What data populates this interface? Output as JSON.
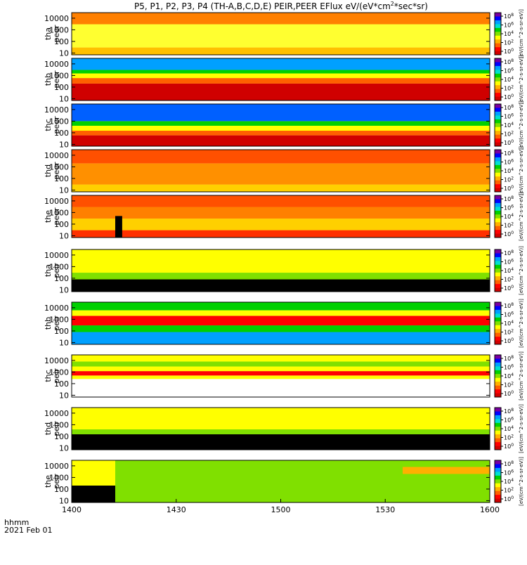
{
  "title": {
    "text": "P5, P1, P2, P3, P4 (TH-A,B,C,D,E) PEIR,PEER EFlux eV/(eV*cm",
    "sup": "2",
    "text_end": "*sec*sr)"
  },
  "time_axis": {
    "label_line1": "hhmm",
    "label_line2": "2021 Feb 01",
    "ticks": [
      {
        "t": 0,
        "label": "1400"
      },
      {
        "t": 30,
        "label": "1430"
      },
      {
        "t": 60,
        "label": "1500"
      },
      {
        "t": 90,
        "label": "1530"
      },
      {
        "t": 120,
        "label": "1600"
      }
    ],
    "range_minutes": [
      0,
      120
    ]
  },
  "colorbar": {
    "ticks": [
      {
        "base": "10",
        "exp": "8"
      },
      {
        "base": "10",
        "exp": "6"
      },
      {
        "base": "10",
        "exp": "4"
      },
      {
        "base": "10",
        "exp": "2"
      },
      {
        "base": "10",
        "exp": "0"
      }
    ],
    "label": "[eV/(cm^2-s-sr-eV)]"
  },
  "colors": {
    "scale": [
      "#7800a0",
      "#0000ff",
      "#00a0ff",
      "#00e0d0",
      "#00d000",
      "#80e000",
      "#ffff00",
      "#ffb000",
      "#ff6000",
      "#ff0000",
      "#d00000"
    ],
    "fill_value": "#000000",
    "empty": "#ffffff"
  },
  "chart_data": {
    "type": "heatmap",
    "x_unit": "minutes after 14:00 UT",
    "y_scale": "log",
    "panels": [
      {
        "probe": "tha",
        "species": "peer",
        "ylabel1": "tha",
        "ylabel2": "peer",
        "yrange": [
          7,
          30000
        ],
        "yticks": [
          "10000",
          "1000",
          "100",
          "10"
        ],
        "bands": [
          {
            "elo": 7,
            "ehi": 30,
            "color": "#ffc000"
          },
          {
            "elo": 30,
            "ehi": 3000,
            "color": "#ffff30"
          },
          {
            "elo": 3000,
            "ehi": 30000,
            "color": "#ff8000"
          }
        ]
      },
      {
        "probe": "thb",
        "species": "peer",
        "ylabel1": "thb",
        "ylabel2": "peer",
        "yrange": [
          7,
          30000
        ],
        "yticks": [
          "10000",
          "1000",
          "100",
          "10"
        ],
        "bands": [
          {
            "elo": 7,
            "ehi": 200,
            "color": "#d00000"
          },
          {
            "elo": 200,
            "ehi": 600,
            "color": "#ff6000"
          },
          {
            "elo": 600,
            "ehi": 1500,
            "color": "#ffff00"
          },
          {
            "elo": 1500,
            "ehi": 3000,
            "color": "#00d000"
          },
          {
            "elo": 3000,
            "ehi": 30000,
            "color": "#00a0ff"
          }
        ]
      },
      {
        "probe": "thc",
        "species": "peer",
        "ylabel1": "thc",
        "ylabel2": "peer",
        "yrange": [
          7,
          30000
        ],
        "yticks": [
          "10000",
          "1000",
          "100",
          "10"
        ],
        "bands": [
          {
            "elo": 7,
            "ehi": 60,
            "color": "#d00000"
          },
          {
            "elo": 60,
            "ehi": 150,
            "color": "#ff6000"
          },
          {
            "elo": 150,
            "ehi": 400,
            "color": "#ffff00"
          },
          {
            "elo": 400,
            "ehi": 1000,
            "color": "#00d000"
          },
          {
            "elo": 1000,
            "ehi": 30000,
            "color": "#0060ff"
          }
        ]
      },
      {
        "probe": "thd",
        "species": "peer",
        "ylabel1": "thd",
        "ylabel2": "peer",
        "yrange": [
          7,
          30000
        ],
        "yticks": [
          "10000",
          "1000",
          "100",
          "10"
        ],
        "bands": [
          {
            "elo": 7,
            "ehi": 30,
            "color": "#ffd000"
          },
          {
            "elo": 30,
            "ehi": 2000,
            "color": "#ff9000"
          },
          {
            "elo": 2000,
            "ehi": 30000,
            "color": "#ff5000"
          }
        ]
      },
      {
        "probe": "the",
        "species": "peer",
        "ylabel1": "the",
        "ylabel2": "peer",
        "yrange": [
          7,
          30000
        ],
        "yticks": [
          "10000",
          "1000",
          "100",
          "10"
        ],
        "bands": [
          {
            "elo": 7,
            "ehi": 30,
            "color": "#ff3000"
          },
          {
            "elo": 30,
            "ehi": 300,
            "color": "#ffd000"
          },
          {
            "elo": 300,
            "ehi": 3000,
            "color": "#ff8000"
          },
          {
            "elo": 3000,
            "ehi": 30000,
            "color": "#ff5000"
          }
        ],
        "overlays": [
          {
            "t0": 12.5,
            "t1": 14.5,
            "elo": 7,
            "ehi": 500,
            "color": "#000000"
          }
        ]
      },
      {
        "probe": "tha",
        "species": "peir",
        "ylabel1": "tha",
        "ylabel2": "peir",
        "yrange": [
          7,
          30000
        ],
        "yticks": [
          "10000",
          "1000",
          "100",
          "10"
        ],
        "bands": [
          {
            "elo": 7,
            "ehi": 80,
            "color": "#000000"
          },
          {
            "elo": 80,
            "ehi": 300,
            "color": "#80e000"
          },
          {
            "elo": 300,
            "ehi": 30000,
            "color": "#ffff00"
          }
        ]
      },
      {
        "probe": "thb",
        "species": "peir",
        "ylabel1": "thb",
        "ylabel2": "peir",
        "yrange": [
          7,
          30000
        ],
        "yticks": [
          "10000",
          "1000",
          "100",
          "10"
        ],
        "bands": [
          {
            "elo": 7,
            "ehi": 80,
            "color": "#00a0ff"
          },
          {
            "elo": 80,
            "ehi": 300,
            "color": "#00d000"
          },
          {
            "elo": 300,
            "ehi": 2000,
            "color": "#ff0000"
          },
          {
            "elo": 2000,
            "ehi": 6000,
            "color": "#ffff00"
          },
          {
            "elo": 6000,
            "ehi": 30000,
            "color": "#00d000"
          }
        ]
      },
      {
        "probe": "thc",
        "species": "peir",
        "ylabel1": "thc",
        "ylabel2": "peir",
        "yrange": [
          7,
          30000
        ],
        "yticks": [
          "10000",
          "1000",
          "100",
          "10"
        ],
        "bands": [
          {
            "elo": 7,
            "ehi": 250,
            "color": "#ffffff"
          },
          {
            "elo": 250,
            "ehi": 500,
            "color": "#ffff00"
          },
          {
            "elo": 500,
            "ehi": 1200,
            "color": "#ff0000"
          },
          {
            "elo": 1200,
            "ehi": 3000,
            "color": "#ffff00"
          },
          {
            "elo": 3000,
            "ehi": 8000,
            "color": "#80e000"
          },
          {
            "elo": 8000,
            "ehi": 30000,
            "color": "#ffff00"
          }
        ]
      },
      {
        "probe": "thd",
        "species": "peir",
        "ylabel1": "thd",
        "ylabel2": "peir",
        "yrange": [
          7,
          30000
        ],
        "yticks": [
          "10000",
          "1000",
          "100",
          "10"
        ],
        "bands": [
          {
            "elo": 7,
            "ehi": 150,
            "color": "#000000"
          },
          {
            "elo": 150,
            "ehi": 400,
            "color": "#80e000"
          },
          {
            "elo": 400,
            "ehi": 30000,
            "color": "#ffff00"
          }
        ]
      },
      {
        "probe": "the",
        "species": "peir",
        "ylabel1": "the",
        "ylabel2": "peir",
        "yrange": [
          7,
          30000
        ],
        "yticks": [
          "10000",
          "1000",
          "100",
          "10"
        ],
        "bands": [
          {
            "elo": 7,
            "ehi": 30000,
            "color": "#80e000"
          }
        ],
        "overlays": [
          {
            "t0": 0,
            "t1": 12.5,
            "elo": 7,
            "ehi": 200,
            "color": "#000000"
          },
          {
            "t0": 0,
            "t1": 12.5,
            "elo": 200,
            "ehi": 30000,
            "color": "#ffff00"
          },
          {
            "t0": 95,
            "t1": 120,
            "elo": 2000,
            "ehi": 8000,
            "color": "#ffb000"
          }
        ]
      }
    ]
  }
}
